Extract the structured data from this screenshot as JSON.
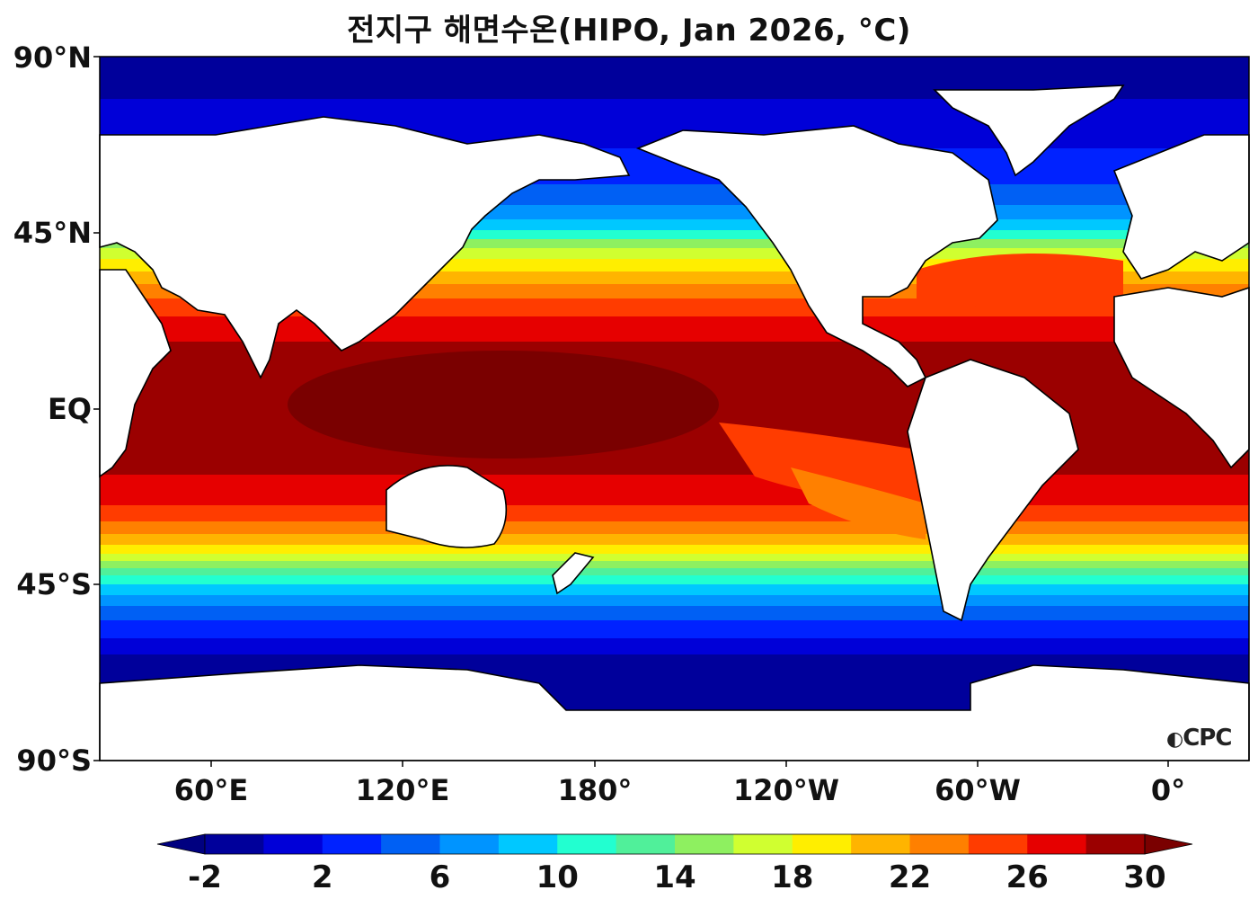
{
  "title": "전지구 해면수온(HIPO, Jan 2026, °C)",
  "logo_text": "CPC",
  "map": {
    "lat_labels": [
      "90°N",
      "45°N",
      "EQ",
      "45°S",
      "90°S"
    ],
    "lon_labels": [
      "60°E",
      "120°E",
      "180°",
      "120°W",
      "60°W",
      "0°"
    ]
  },
  "colorbar": {
    "tick_labels": [
      "-2",
      "2",
      "6",
      "10",
      "14",
      "18",
      "22",
      "26",
      "30"
    ],
    "levels": [
      -2,
      0,
      2,
      4,
      6,
      8,
      10,
      12,
      14,
      16,
      18,
      20,
      22,
      24,
      26,
      28,
      30
    ],
    "colors": [
      "#00009b",
      "#0000d8",
      "#0022ff",
      "#0060f4",
      "#0094ff",
      "#00c8ff",
      "#22ffd0",
      "#50f09a",
      "#8ef060",
      "#d0ff30",
      "#ffee00",
      "#ffb400",
      "#ff8000",
      "#ff3c00",
      "#e60000",
      "#9b0000"
    ],
    "under_color": "#000080",
    "over_color": "#7a0000",
    "extend": "both"
  }
}
